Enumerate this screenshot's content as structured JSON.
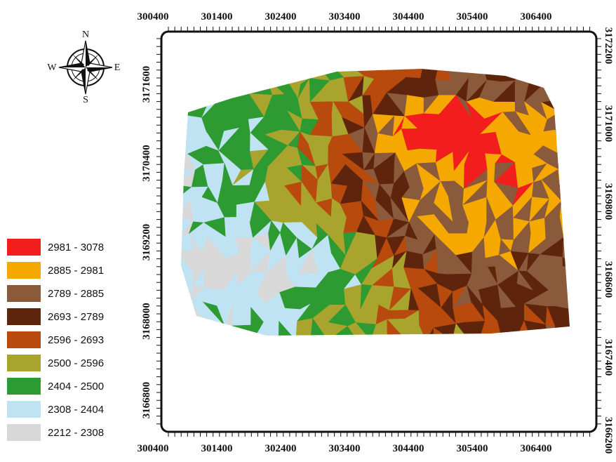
{
  "map": {
    "x_ticks": [
      300400,
      301400,
      302400,
      303400,
      304400,
      305400,
      306400
    ],
    "y_ticks_left": [
      3171600,
      3170400,
      3169200,
      3168000,
      3166800
    ],
    "y_ticks_right": [
      3172200,
      3171000,
      3169800,
      3168600,
      3167400,
      3166200
    ],
    "compass": {
      "n": "N",
      "s": "S",
      "e": "E",
      "w": "W"
    },
    "legend": [
      {
        "label": "2981 - 3078",
        "color": "#f21d1d"
      },
      {
        "label": "2885 - 2981",
        "color": "#f5a800"
      },
      {
        "label": "2789 - 2885",
        "color": "#8a5a3a"
      },
      {
        "label": "2693 - 2789",
        "color": "#5e250c"
      },
      {
        "label": "2596 - 2693",
        "color": "#b84a0e"
      },
      {
        "label": "2500 - 2596",
        "color": "#a8a42e"
      },
      {
        "label": "2404 - 2500",
        "color": "#2d9a32"
      },
      {
        "label": "2308 - 2404",
        "color": "#bfe3f3"
      },
      {
        "label": "2212 - 2308",
        "color": "#d8d8d8"
      }
    ]
  }
}
